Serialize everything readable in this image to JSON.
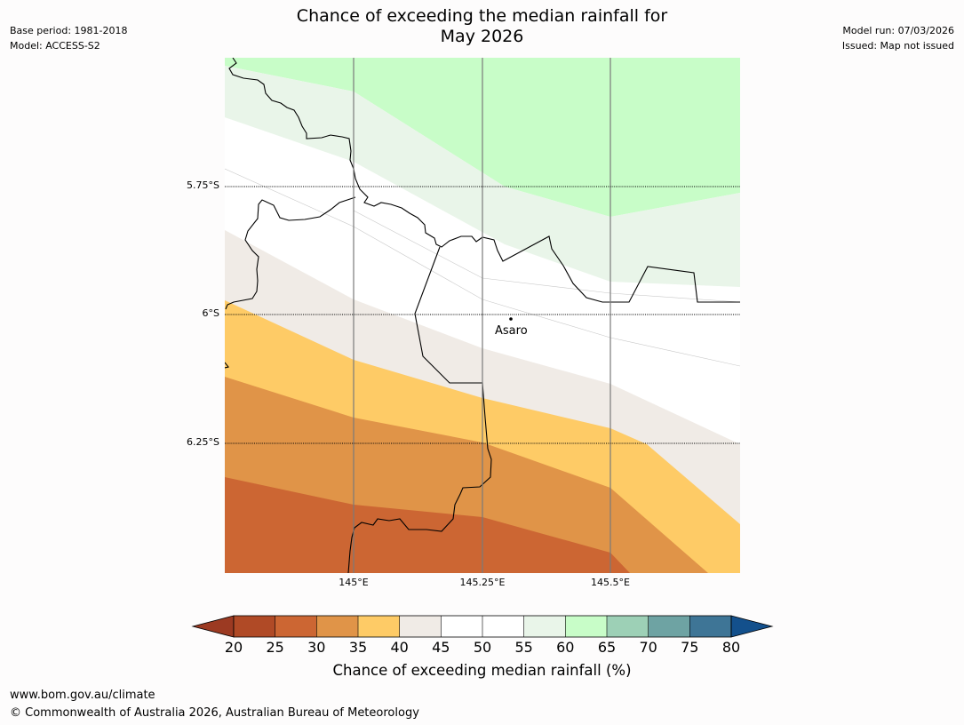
{
  "header": {
    "title_line1": "Chance of exceeding the median rainfall for",
    "title_line2": "May 2026",
    "base_period": "Base period: 1981-2018",
    "model": "Model: ACCESS-S2",
    "model_run": "Model run: 07/03/2026",
    "issued": "Issued: Map not issued"
  },
  "map": {
    "latitude_labels": [
      "5.75°S",
      "6°S",
      "6.25°S"
    ],
    "longitude_labels": [
      "145°E",
      "145.25°E",
      "145.5°E"
    ],
    "city": "Asaro"
  },
  "colorbar": {
    "title": "Chance of exceeding median rainfall (%)",
    "ticks": [
      "20",
      "25",
      "30",
      "35",
      "40",
      "45",
      "50",
      "55",
      "60",
      "65",
      "70",
      "75",
      "80"
    ],
    "colors": {
      "below_20": "#9c3a22",
      "c20_25": "#b04a26",
      "c25_30": "#cc6633",
      "c30_35": "#e09448",
      "c35_40": "#fecb66",
      "c40_45": "#f0ebe6",
      "c45_55": "#ffffff",
      "c55_60": "#e9f5e9",
      "c60_65": "#c8fdc8",
      "c65_70": "#9dd0b6",
      "c70_75": "#6ea3a3",
      "c75_80": "#3e7596",
      "above_80": "#13508c"
    }
  },
  "footer": {
    "url": "www.bom.gov.au/climate",
    "copyright": "© Commonwealth of Australia 2026, Australian Bureau of Meteorology"
  }
}
